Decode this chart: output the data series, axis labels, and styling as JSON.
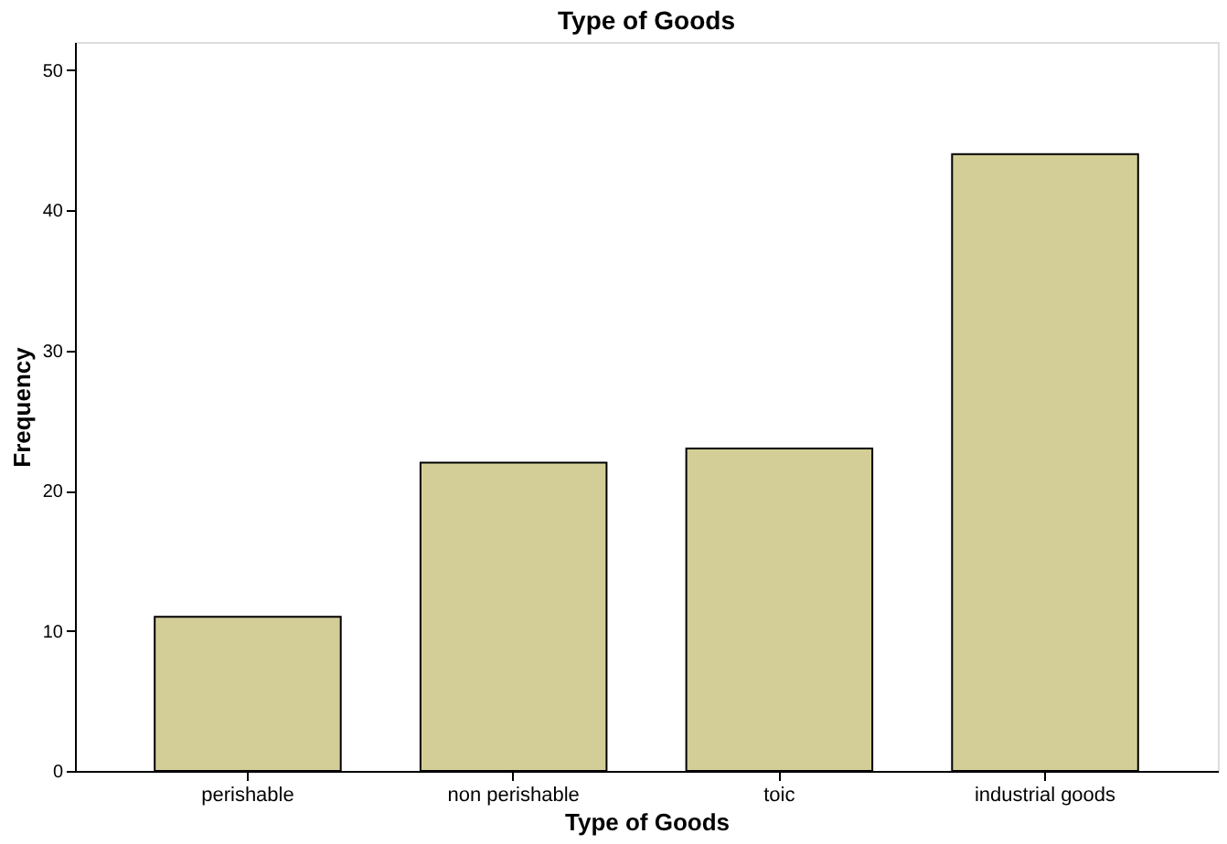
{
  "chart_data": {
    "type": "bar",
    "title": "Type of Goods",
    "xlabel": "Type of Goods",
    "ylabel": "Frequency",
    "categories": [
      "perishable",
      "non perishable",
      "toic",
      "industrial goods"
    ],
    "values": [
      11,
      22,
      23,
      44
    ],
    "color": "#d3ce97",
    "ylim": [
      0,
      52
    ],
    "yticks": [
      0,
      10,
      20,
      30,
      40,
      50
    ],
    "grid": false
  }
}
